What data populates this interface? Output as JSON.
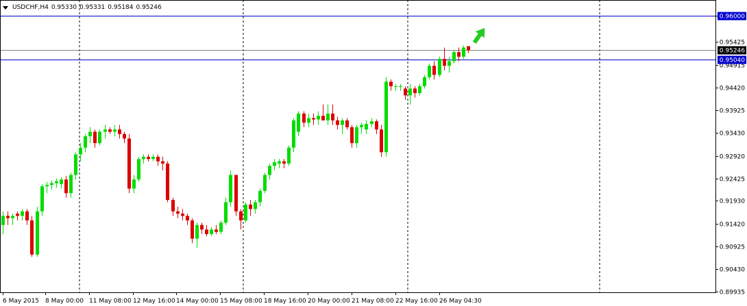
{
  "header": {
    "symbol": "USDCHF,H4",
    "open": "0.95330",
    "high": "0.95331",
    "low": "0.95184",
    "close": "0.95246"
  },
  "colors": {
    "bull": "#00dd00",
    "bear": "#dd0000",
    "level_line": "#0000cc",
    "current_price_line": "#808080",
    "arrow": "#22cc22",
    "axis": "#000000",
    "grid": "#000000"
  },
  "chart_data": {
    "type": "candlestick",
    "symbol": "USDCHF",
    "timeframe": "H4",
    "price_axis": {
      "ylim": [
        0.89935,
        0.96162
      ],
      "ticks": [
        "0.96000",
        "0.95425",
        "0.94915",
        "0.94420",
        "0.93925",
        "0.93430",
        "0.92920",
        "0.92425",
        "0.91930",
        "0.91420",
        "0.90925",
        "0.90430",
        "0.89935"
      ]
    },
    "time_axis": {
      "labels": [
        "6 May 2015",
        "8 May 00:00",
        "11 May 08:00",
        "12 May 16:00",
        "14 May 00:00",
        "15 May 08:00",
        "18 May 16:00",
        "20 May 00:00",
        "21 May 08:00",
        "22 May 16:00",
        "26 May 04:30"
      ]
    },
    "vertical_grid": "dashed",
    "horizontal_lines": [
      {
        "label": "0.96000",
        "value": 0.96
      },
      {
        "label": "0.95040",
        "value": 0.9504
      }
    ],
    "current_price": {
      "label": "0.95246",
      "value": 0.95246
    },
    "annotation": "green up arrow",
    "candles": [
      [
        0.914,
        0.917,
        0.912,
        0.916
      ],
      [
        0.916,
        0.917,
        0.914,
        0.9155
      ],
      [
        0.9155,
        0.9165,
        0.914,
        0.916
      ],
      [
        0.9165,
        0.917,
        0.915,
        0.916
      ],
      [
        0.916,
        0.9175,
        0.915,
        0.917
      ],
      [
        0.917,
        0.9175,
        0.914,
        0.915
      ],
      [
        0.915,
        0.916,
        0.907,
        0.9075
      ],
      [
        0.9075,
        0.918,
        0.907,
        0.917
      ],
      [
        0.917,
        0.923,
        0.916,
        0.9225
      ],
      [
        0.9225,
        0.9235,
        0.921,
        0.9228
      ],
      [
        0.9228,
        0.9238,
        0.9218,
        0.9232
      ],
      [
        0.9232,
        0.9242,
        0.9222,
        0.9236
      ],
      [
        0.923,
        0.9245,
        0.922,
        0.924
      ],
      [
        0.924,
        0.9248,
        0.92,
        0.921
      ],
      [
        0.921,
        0.9255,
        0.92,
        0.925
      ],
      [
        0.925,
        0.93,
        0.924,
        0.9295
      ],
      [
        0.9295,
        0.932,
        0.928,
        0.931
      ],
      [
        0.931,
        0.934,
        0.93,
        0.9335
      ],
      [
        0.9335,
        0.9355,
        0.932,
        0.9345
      ],
      [
        0.9345,
        0.935,
        0.931,
        0.932
      ],
      [
        0.932,
        0.935,
        0.9315,
        0.9345
      ],
      [
        0.9345,
        0.936,
        0.933,
        0.935
      ],
      [
        0.935,
        0.9355,
        0.934,
        0.9345
      ],
      [
        0.9345,
        0.936,
        0.9335,
        0.935
      ],
      [
        0.935,
        0.936,
        0.933,
        0.934
      ],
      [
        0.934,
        0.9345,
        0.932,
        0.933
      ],
      [
        0.933,
        0.934,
        0.921,
        0.922
      ],
      [
        0.922,
        0.925,
        0.921,
        0.924
      ],
      [
        0.924,
        0.929,
        0.9235,
        0.9285
      ],
      [
        0.9285,
        0.9295,
        0.9275,
        0.929
      ],
      [
        0.929,
        0.9295,
        0.928,
        0.9285
      ],
      [
        0.9285,
        0.9295,
        0.928,
        0.929
      ],
      [
        0.929,
        0.9295,
        0.927,
        0.928
      ],
      [
        0.928,
        0.929,
        0.926,
        0.9275
      ],
      [
        0.9275,
        0.928,
        0.919,
        0.9195
      ],
      [
        0.9195,
        0.92,
        0.916,
        0.917
      ],
      [
        0.917,
        0.918,
        0.9155,
        0.9165
      ],
      [
        0.9165,
        0.9175,
        0.915,
        0.916
      ],
      [
        0.916,
        0.9165,
        0.914,
        0.915
      ],
      [
        0.915,
        0.9155,
        0.91,
        0.911
      ],
      [
        0.911,
        0.9145,
        0.909,
        0.914
      ],
      [
        0.914,
        0.9145,
        0.912,
        0.913
      ],
      [
        0.913,
        0.914,
        0.9115,
        0.912
      ],
      [
        0.912,
        0.9135,
        0.9115,
        0.913
      ],
      [
        0.913,
        0.914,
        0.912,
        0.9125
      ],
      [
        0.9125,
        0.915,
        0.912,
        0.9145
      ],
      [
        0.9145,
        0.92,
        0.914,
        0.919
      ],
      [
        0.919,
        0.926,
        0.918,
        0.925
      ],
      [
        0.925,
        0.925,
        0.916,
        0.917
      ],
      [
        0.917,
        0.9175,
        0.913,
        0.915
      ],
      [
        0.915,
        0.919,
        0.9145,
        0.9185
      ],
      [
        0.9185,
        0.9195,
        0.916,
        0.9175
      ],
      [
        0.9175,
        0.9195,
        0.9165,
        0.919
      ],
      [
        0.919,
        0.922,
        0.918,
        0.9215
      ],
      [
        0.9215,
        0.9255,
        0.921,
        0.925
      ],
      [
        0.925,
        0.9275,
        0.924,
        0.927
      ],
      [
        0.927,
        0.9285,
        0.926,
        0.9278
      ],
      [
        0.9275,
        0.9285,
        0.9265,
        0.928
      ],
      [
        0.928,
        0.9285,
        0.9265,
        0.9275
      ],
      [
        0.9275,
        0.9315,
        0.927,
        0.931
      ],
      [
        0.931,
        0.9375,
        0.93,
        0.937
      ],
      [
        0.9345,
        0.939,
        0.9335,
        0.9385
      ],
      [
        0.9385,
        0.939,
        0.9355,
        0.9365
      ],
      [
        0.9365,
        0.9385,
        0.9355,
        0.9375
      ],
      [
        0.9375,
        0.9385,
        0.936,
        0.9372
      ],
      [
        0.9372,
        0.939,
        0.936,
        0.938
      ],
      [
        0.938,
        0.9405,
        0.937,
        0.937
      ],
      [
        0.937,
        0.9405,
        0.936,
        0.9385
      ],
      [
        0.9385,
        0.9405,
        0.936,
        0.937
      ],
      [
        0.937,
        0.9378,
        0.935,
        0.936
      ],
      [
        0.936,
        0.9375,
        0.934,
        0.937
      ],
      [
        0.937,
        0.9375,
        0.935,
        0.9355
      ],
      [
        0.9355,
        0.936,
        0.931,
        0.932
      ],
      [
        0.932,
        0.936,
        0.931,
        0.9355
      ],
      [
        0.9355,
        0.9365,
        0.934,
        0.936
      ],
      [
        0.935,
        0.937,
        0.934,
        0.9362
      ],
      [
        0.9362,
        0.9375,
        0.9355,
        0.9368
      ],
      [
        0.9368,
        0.9372,
        0.934,
        0.935
      ],
      [
        0.935,
        0.936,
        0.929,
        0.93
      ],
      [
        0.93,
        0.9465,
        0.929,
        0.9455
      ],
      [
        0.9455,
        0.946,
        0.9435,
        0.9445
      ],
      [
        0.9445,
        0.945,
        0.9435,
        0.9445
      ],
      [
        0.9445,
        0.945,
        0.9435,
        0.9445
      ],
      [
        0.944,
        0.9445,
        0.9415,
        0.9425
      ],
      [
        0.9425,
        0.945,
        0.9405,
        0.944
      ],
      [
        0.944,
        0.9445,
        0.942,
        0.943
      ],
      [
        0.943,
        0.945,
        0.9425,
        0.9445
      ],
      [
        0.9445,
        0.947,
        0.944,
        0.9465
      ],
      [
        0.9465,
        0.9495,
        0.946,
        0.949
      ],
      [
        0.949,
        0.95,
        0.946,
        0.947
      ],
      [
        0.947,
        0.951,
        0.9465,
        0.9505
      ],
      [
        0.9505,
        0.953,
        0.948,
        0.949
      ],
      [
        0.949,
        0.951,
        0.9475,
        0.95
      ],
      [
        0.95,
        0.9525,
        0.9495,
        0.952
      ],
      [
        0.952,
        0.953,
        0.95,
        0.951
      ],
      [
        0.951,
        0.9535,
        0.9505,
        0.953
      ],
      [
        0.9533,
        0.9533,
        0.9518,
        0.95246
      ]
    ]
  }
}
